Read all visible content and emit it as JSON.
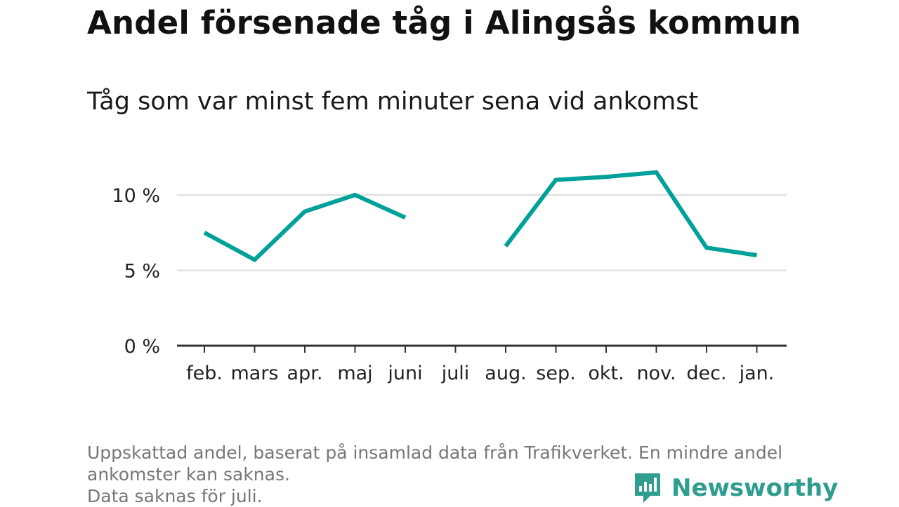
{
  "title": "Andel försenade tåg i Alingsås kommun",
  "subtitle": "Tåg som var minst fem minuter sena vid ankomst",
  "footer": {
    "line1": "Uppskattad andel, baserat på insamlad data från Trafikverket. En mindre andel",
    "line2": "ankomster kan saknas.",
    "line3": "Data saknas för juli."
  },
  "brand": {
    "name": "Newsworthy",
    "icon": "newsworthy-logo-icon",
    "color": "#2f9e8f"
  },
  "chart_data": {
    "type": "line",
    "categories": [
      "feb.",
      "mars",
      "apr.",
      "maj",
      "juni",
      "juli",
      "aug.",
      "sep.",
      "okt.",
      "nov.",
      "dec.",
      "jan."
    ],
    "series": [
      {
        "values": [
          7.5,
          5.7,
          8.9,
          10.0,
          8.5,
          null,
          6.6,
          11.0,
          11.2,
          11.5,
          6.5,
          6.0
        ],
        "color": "#00a19a"
      }
    ],
    "yticks": [
      {
        "value": 0,
        "label": "0 %"
      },
      {
        "value": 5,
        "label": "5 %"
      },
      {
        "value": 10,
        "label": "10 %"
      }
    ],
    "ylim": [
      0,
      12
    ],
    "grid": true,
    "unit": "%"
  }
}
